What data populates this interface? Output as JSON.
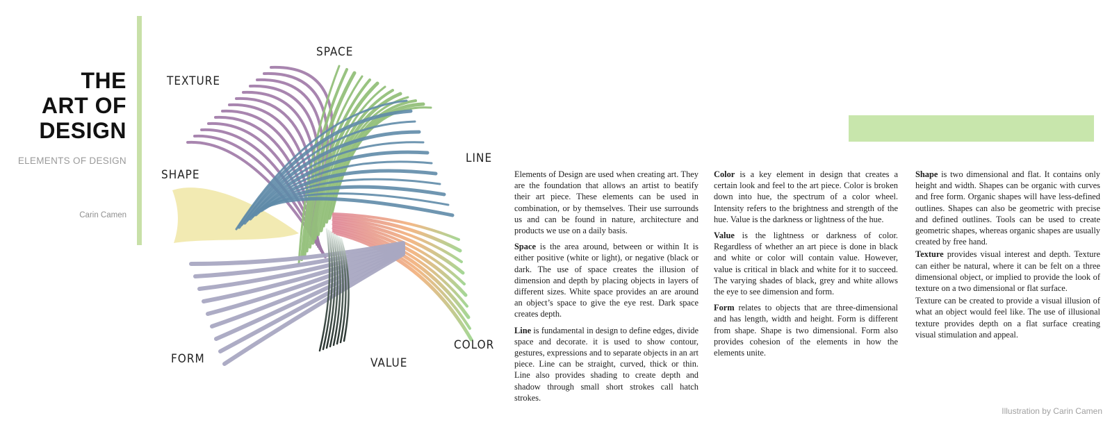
{
  "header": {
    "title_lines": [
      "THE",
      "ART OF",
      "DESIGN"
    ],
    "subtitle": "ELEMENTS OF DESIGN",
    "author": "Carin Camen"
  },
  "illustration": {
    "labels": {
      "space": "SPACE",
      "texture": "TEXTURE",
      "line": "LINE",
      "shape": "SHAPE",
      "form": "FORM",
      "value": "VALUE",
      "color": "COLOR"
    },
    "colors": {
      "texture": "#9e78a6",
      "space": "#94c07a",
      "line": "#5f8ba8",
      "shape": "#f0e6a4",
      "form": "#a9a8c2",
      "value": "#2e3b36",
      "color_from": "#e08a9a",
      "color_to": "#9cd28a",
      "accent": "#c8e0a8"
    }
  },
  "columns": {
    "c1": {
      "p1": "Elements of Design are used when creating art. They are the foundation that allows an artist to beatify their art piece. These elements can be used in combination, or by themselves. Their use surrounds us and can be found in nature, architecture and products we use on a daily basis.",
      "p2_term": "Space",
      "p2": " is the area around, between or within It is either positive (white or light), or negative (black or dark. The use of space creates the illusion of dimension and depth by placing objects in layers of different sizes. White space provides an are around an object’s space to give the eye rest. Dark space creates depth.",
      "p3_term": "Line",
      "p3": " is fundamental in design to define edges, divide space and decorate. it is used to show contour, gestures, expressions and to separate objects in an art piece. Line can be straight, curved, thick or thin. Line also provides shading to create depth and shadow through small short strokes call hatch strokes."
    },
    "c2": {
      "p1_term": "Color",
      "p1": " is a key element in design that creates a certain look and feel to the art piece. Color is broken down into hue, the spectrum of a color wheel. Intensity refers to the brightness and strength of the hue. Value is the darkness or lightness of the hue.",
      "p2_term": "Value",
      "p2": " is the lightness or darkness of color. Regardless of whether an art piece is done in black and white or color will contain value. However, value is critical in black and white for it to succeed. The varying shades of black, grey and white allows the eye to see dimension and form.",
      "p3_term": "Form",
      "p3": " relates to objects that are three-dimensional and has length, width and height. Form is different from shape. Shape is two dimensional. Form also provides cohesion of the elements in how the elements unite."
    },
    "c3": {
      "p1_term": "Shape",
      "p1": " is two dimensional and flat. It contains only height and width. Shapes can be organic with curves and free form. Organic shapes will have less-defined outlines. Shapes can also be geometric with precise and defined outlines. Tools can be used to create geometric shapes, whereas organic shapes are usually created by free hand.",
      "p2_term": "Texture",
      "p2": " provides visual interest and depth. Texture can either be natural, where it can be felt on a three dimensional object, or implied to provide the look of texture on a two dimensional or flat surface.",
      "p3": "Texture can be created to provide a visual illusion of what an object would feel like. The use of illusional texture provides depth on a flat surface creating visual stimulation and appeal."
    }
  },
  "footer": {
    "credit": "Illustration by Carin Camen"
  }
}
